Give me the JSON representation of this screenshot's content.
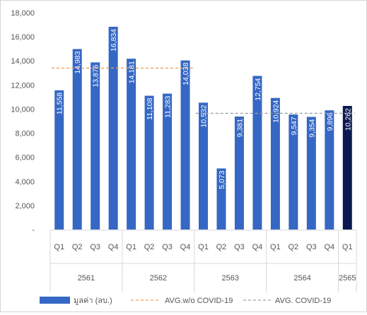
{
  "chart_data": {
    "type": "bar",
    "ylim": [
      0,
      18000
    ],
    "yticks": [
      0,
      2000,
      4000,
      6000,
      8000,
      10000,
      12000,
      14000,
      16000,
      18000
    ],
    "ytick_labels": [
      "-",
      "2,000",
      "4,000",
      "6,000",
      "8,000",
      "10,000",
      "12,000",
      "14,000",
      "16,000",
      "18,000"
    ],
    "categories": [
      "Q1",
      "Q2",
      "Q3",
      "Q4",
      "Q1",
      "Q2",
      "Q3",
      "Q4",
      "Q1",
      "Q2",
      "Q3",
      "Q4",
      "Q1",
      "Q2",
      "Q3",
      "Q4",
      "Q1"
    ],
    "groups": [
      {
        "label": "2561",
        "count": 4
      },
      {
        "label": "2562",
        "count": 4
      },
      {
        "label": "2563",
        "count": 4
      },
      {
        "label": "2564",
        "count": 4
      },
      {
        "label": "2565",
        "count": 1
      }
    ],
    "series": [
      {
        "name": "มูลค่า (ลบ.)",
        "values": [
          11558,
          14983,
          13876,
          16834,
          14181,
          11108,
          11283,
          14038,
          10532,
          5073,
          9381,
          12754,
          10924,
          9547,
          9354,
          9896,
          10262
        ],
        "labels": [
          "11,558",
          "14,983",
          "13,876",
          "16,834",
          "14,181",
          "11,108",
          "11,283",
          "14,038",
          "10,532",
          "5,073",
          "9,381",
          "12,754",
          "10,924",
          "9,547",
          "9,354",
          "9,896",
          "10,262"
        ]
      }
    ],
    "reference_lines": [
      {
        "name": "AVG.w/o COVID-19",
        "value": 13400,
        "from_index": 0,
        "to_index": 7,
        "color": "#e8a05c"
      },
      {
        "name": "AVG. COVID-19",
        "value": 9650,
        "from_index": 8,
        "to_index": 16,
        "color": "#9aa0a8"
      }
    ],
    "colors": {
      "bar": "#3567c4",
      "highlight_bar": "#0b1850",
      "label_text": "#ffffff",
      "axis_text": "#555555",
      "grid": "#d9d9d9"
    },
    "highlight_index": 16,
    "legend_position": "bottom",
    "grid": false
  }
}
